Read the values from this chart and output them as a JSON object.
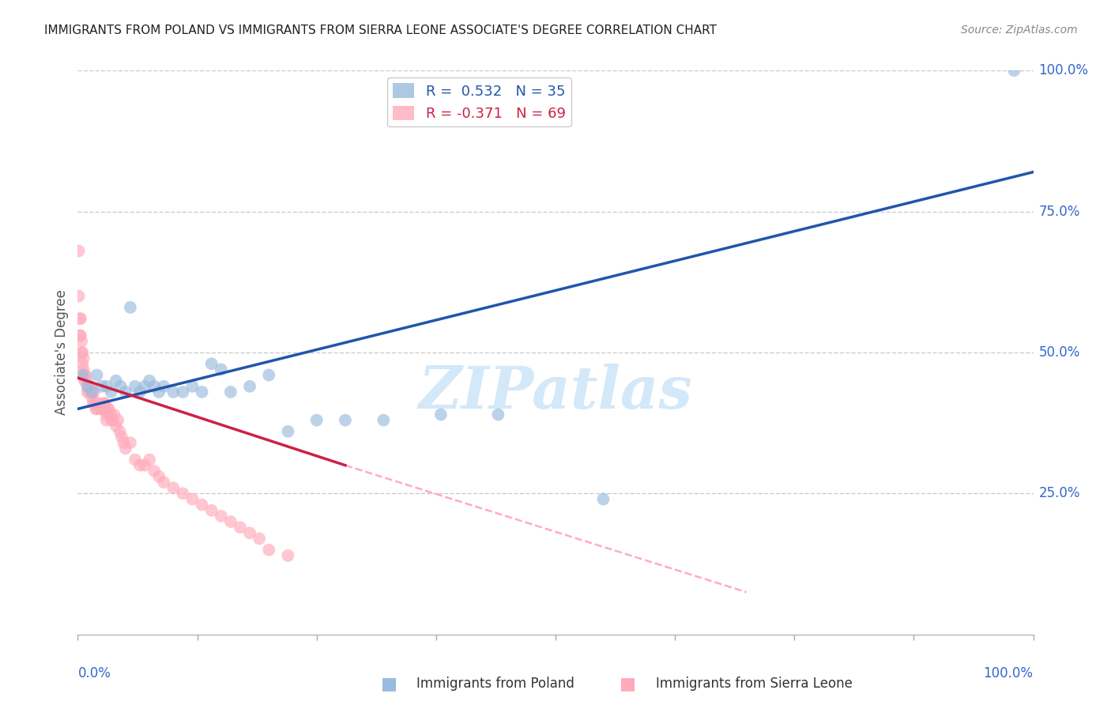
{
  "title": "IMMIGRANTS FROM POLAND VS IMMIGRANTS FROM SIERRA LEONE ASSOCIATE'S DEGREE CORRELATION CHART",
  "source": "Source: ZipAtlas.com",
  "ylabel": "Associate's Degree",
  "xlim": [
    0.0,
    1.0
  ],
  "ylim": [
    0.0,
    1.0
  ],
  "ytick_positions": [
    0.0,
    0.25,
    0.5,
    0.75,
    1.0
  ],
  "ytick_labels": [
    "",
    "25.0%",
    "50.0%",
    "75.0%",
    "100.0%"
  ],
  "xtick_positions": [
    0.0,
    0.125,
    0.25,
    0.375,
    0.5,
    0.625,
    0.75,
    0.875,
    1.0
  ],
  "poland_color": "#99bbdd",
  "sierra_leone_color": "#ffaabb",
  "poland_R": 0.532,
  "poland_N": 35,
  "sierra_leone_R": -0.371,
  "sierra_leone_N": 69,
  "watermark_text": "ZIPatlas",
  "poland_scatter_x": [
    0.005,
    0.01,
    0.015,
    0.02,
    0.025,
    0.03,
    0.035,
    0.04,
    0.045,
    0.05,
    0.055,
    0.06,
    0.065,
    0.07,
    0.075,
    0.08,
    0.085,
    0.09,
    0.1,
    0.11,
    0.12,
    0.13,
    0.14,
    0.15,
    0.16,
    0.18,
    0.2,
    0.22,
    0.25,
    0.28,
    0.32,
    0.38,
    0.44,
    0.55,
    0.98
  ],
  "poland_scatter_y": [
    0.46,
    0.44,
    0.43,
    0.46,
    0.44,
    0.44,
    0.43,
    0.45,
    0.44,
    0.43,
    0.58,
    0.44,
    0.43,
    0.44,
    0.45,
    0.44,
    0.43,
    0.44,
    0.43,
    0.43,
    0.44,
    0.43,
    0.48,
    0.47,
    0.43,
    0.44,
    0.46,
    0.36,
    0.38,
    0.38,
    0.38,
    0.39,
    0.39,
    0.24,
    1.0
  ],
  "sierra_leone_scatter_x": [
    0.001,
    0.001,
    0.002,
    0.002,
    0.003,
    0.003,
    0.004,
    0.004,
    0.005,
    0.005,
    0.006,
    0.006,
    0.007,
    0.007,
    0.008,
    0.009,
    0.01,
    0.011,
    0.012,
    0.013,
    0.014,
    0.015,
    0.016,
    0.017,
    0.018,
    0.019,
    0.02,
    0.022,
    0.024,
    0.026,
    0.028,
    0.03,
    0.032,
    0.034,
    0.036,
    0.038,
    0.04,
    0.042,
    0.044,
    0.046,
    0.048,
    0.05,
    0.055,
    0.06,
    0.065,
    0.07,
    0.075,
    0.08,
    0.085,
    0.09,
    0.1,
    0.11,
    0.12,
    0.13,
    0.14,
    0.15,
    0.16,
    0.17,
    0.18,
    0.19,
    0.2,
    0.22,
    0.024,
    0.026,
    0.028,
    0.03,
    0.032,
    0.034,
    0.036
  ],
  "sierra_leone_scatter_y": [
    0.68,
    0.6,
    0.56,
    0.53,
    0.56,
    0.53,
    0.52,
    0.5,
    0.5,
    0.48,
    0.49,
    0.47,
    0.46,
    0.45,
    0.46,
    0.45,
    0.43,
    0.44,
    0.43,
    0.44,
    0.43,
    0.42,
    0.41,
    0.43,
    0.41,
    0.4,
    0.4,
    0.41,
    0.4,
    0.4,
    0.41,
    0.39,
    0.4,
    0.39,
    0.38,
    0.39,
    0.37,
    0.38,
    0.36,
    0.35,
    0.34,
    0.33,
    0.34,
    0.31,
    0.3,
    0.3,
    0.31,
    0.29,
    0.28,
    0.27,
    0.26,
    0.25,
    0.24,
    0.23,
    0.22,
    0.21,
    0.2,
    0.19,
    0.18,
    0.17,
    0.15,
    0.14,
    0.4,
    0.4,
    0.41,
    0.38,
    0.4,
    0.39,
    0.38
  ],
  "background_color": "#ffffff",
  "grid_color": "#cccccc",
  "title_color": "#222222",
  "axis_label_color": "#3366cc",
  "trendline_poland_color": "#2255aa",
  "trendline_sl_solid_color": "#cc2244",
  "trendline_sl_dashed_color": "#ffaacc",
  "poland_trend_x0": 0.0,
  "poland_trend_y0": 0.4,
  "poland_trend_x1": 1.0,
  "poland_trend_y1": 0.82,
  "sl_trend_x0": 0.0,
  "sl_trend_y0": 0.455,
  "sl_trend_x1": 0.28,
  "sl_trend_y1": 0.3,
  "sl_trend_dashed_x0": 0.28,
  "sl_trend_dashed_y0": 0.3,
  "sl_trend_dashed_x1": 0.7,
  "sl_trend_dashed_y1": 0.075
}
